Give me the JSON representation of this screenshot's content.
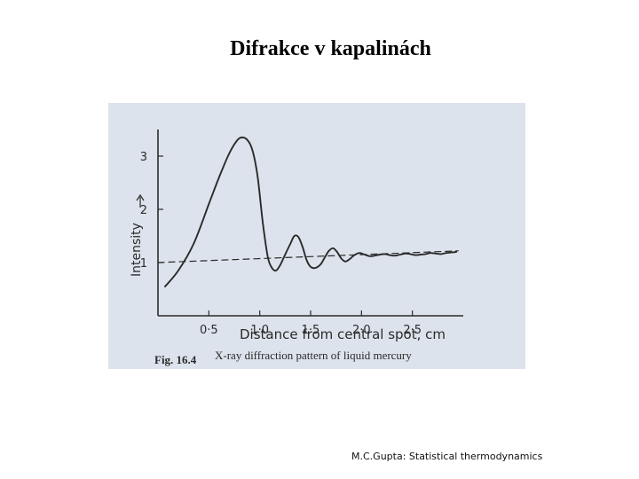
{
  "slide": {
    "title": "Difrakce v kapalinách",
    "footer": "M.C.Gupta: Statistical thermodynamics"
  },
  "figure": {
    "caption_label": "Fig. 16.4",
    "caption_text": "X-ray diffraction pattern of liquid mercury",
    "background_color": "#dde3ec",
    "ink_color": "#2a2a2a"
  },
  "chart_data": {
    "type": "line",
    "title": "",
    "xlabel": "Distance from central spot, cm",
    "ylabel": "Intensity",
    "xlim": [
      0,
      3.0
    ],
    "ylim": [
      0,
      3.5
    ],
    "xticks": [
      {
        "value": 0.5,
        "label": "0·5"
      },
      {
        "value": 1.0,
        "label": "1·0"
      },
      {
        "value": 1.5,
        "label": "1·5"
      },
      {
        "value": 2.0,
        "label": "2·0"
      },
      {
        "value": 2.5,
        "label": "2·5"
      }
    ],
    "yticks": [
      {
        "value": 1,
        "label": "1"
      },
      {
        "value": 2,
        "label": "2"
      },
      {
        "value": 3,
        "label": "3"
      }
    ],
    "grid": false,
    "series": [
      {
        "name": "",
        "style": "solid",
        "x": [
          0.07,
          0.2,
          0.35,
          0.5,
          0.6,
          0.7,
          0.78,
          0.83,
          0.88,
          0.93,
          0.98,
          1.03,
          1.08,
          1.12,
          1.16,
          1.2,
          1.25,
          1.3,
          1.34,
          1.38,
          1.42,
          1.46,
          1.5,
          1.55,
          1.6,
          1.64,
          1.68,
          1.72,
          1.76,
          1.8,
          1.84,
          1.88,
          1.93,
          1.98,
          2.03,
          2.08,
          2.13,
          2.18,
          2.23,
          2.28,
          2.33,
          2.38,
          2.43,
          2.48,
          2.53,
          2.58,
          2.63,
          2.68,
          2.73,
          2.78,
          2.83,
          2.88,
          2.93
        ],
        "y": [
          0.55,
          0.85,
          1.35,
          2.1,
          2.6,
          3.05,
          3.3,
          3.35,
          3.3,
          3.1,
          2.6,
          1.75,
          1.1,
          0.9,
          0.85,
          0.95,
          1.15,
          1.35,
          1.5,
          1.48,
          1.3,
          1.05,
          0.92,
          0.9,
          0.97,
          1.1,
          1.22,
          1.27,
          1.2,
          1.08,
          1.02,
          1.06,
          1.14,
          1.18,
          1.15,
          1.12,
          1.13,
          1.15,
          1.16,
          1.14,
          1.13,
          1.15,
          1.17,
          1.16,
          1.14,
          1.15,
          1.16,
          1.18,
          1.17,
          1.16,
          1.18,
          1.19,
          1.2
        ]
      },
      {
        "name": "",
        "style": "dashed",
        "x": [
          0.0,
          2.95
        ],
        "y": [
          1.0,
          1.22
        ]
      }
    ]
  }
}
